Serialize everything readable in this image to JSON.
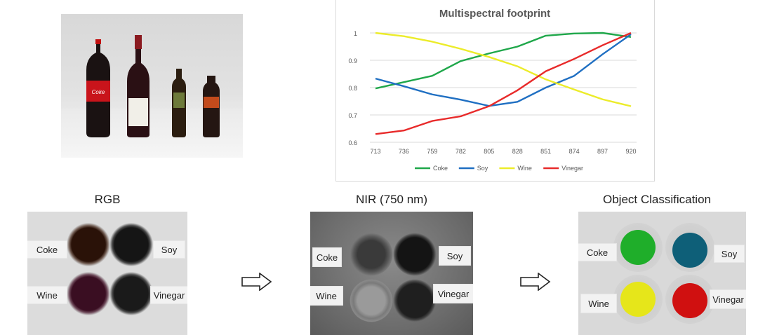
{
  "section_titles": {
    "rgb": "RGB",
    "nir": "NIR (750 nm)",
    "classification": "Object Classification"
  },
  "labels": {
    "coke": "Coke",
    "soy": "Soy",
    "wine": "Wine",
    "vinegar": "Vinegar"
  },
  "classification_colors": {
    "coke": "#1fae2a",
    "soy": "#0e5f78",
    "wine": "#e6e61a",
    "vinegar": "#d01010"
  },
  "chart_data": {
    "type": "line",
    "title": "Multispectral footprint",
    "xlabel": "",
    "ylabel": "",
    "categories": [
      "713",
      "736",
      "759",
      "782",
      "805",
      "828",
      "851",
      "874",
      "897",
      "920"
    ],
    "ylim": [
      0.6,
      1.0
    ],
    "yticks": [
      "0.6",
      "0.7",
      "0.8",
      "0.9",
      "1"
    ],
    "grid": true,
    "legend_position": "bottom",
    "series": [
      {
        "name": "Coke",
        "color": "#1fa74a",
        "values": [
          0.797,
          0.82,
          0.843,
          0.897,
          0.925,
          0.95,
          0.99,
          0.998,
          1.0,
          0.985
        ]
      },
      {
        "name": "Soy",
        "color": "#1f6fc2",
        "values": [
          0.833,
          0.805,
          0.775,
          0.756,
          0.733,
          0.748,
          0.8,
          0.843,
          0.922,
          0.995
        ]
      },
      {
        "name": "Wine",
        "color": "#ecec2a",
        "values": [
          1.0,
          0.988,
          0.968,
          0.942,
          0.912,
          0.878,
          0.83,
          0.793,
          0.757,
          0.732
        ]
      },
      {
        "name": "Vinegar",
        "color": "#e82a2a",
        "values": [
          0.63,
          0.643,
          0.678,
          0.695,
          0.732,
          0.79,
          0.86,
          0.905,
          0.955,
          1.0
        ]
      }
    ]
  }
}
